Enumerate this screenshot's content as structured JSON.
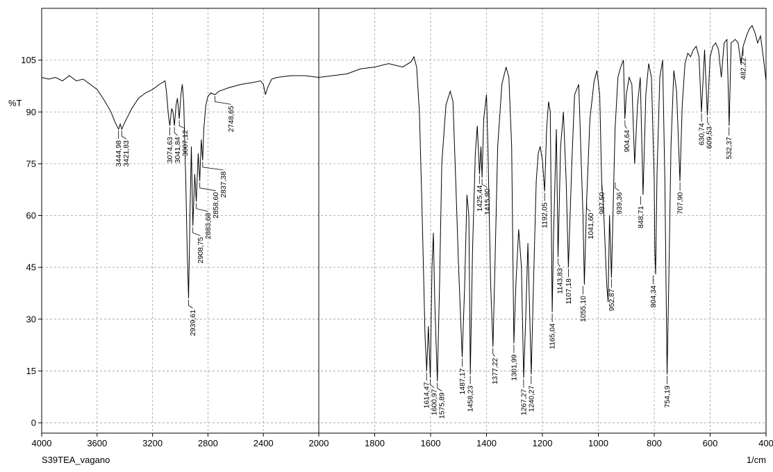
{
  "chart_data": {
    "type": "line",
    "title": "",
    "sample_name": "S39TEA_vagano",
    "xlabel": "1/cm",
    "ylabel": "%T",
    "xlim": [
      4000,
      400
    ],
    "ylim": [
      -3,
      120
    ],
    "x_ticks": [
      "4000",
      "3600",
      "3200",
      "2800",
      "2400",
      "2000",
      "1800",
      "1600",
      "1400",
      "1200",
      "1000",
      "800",
      "600",
      "400"
    ],
    "y_ticks": [
      "0",
      "15",
      "30",
      "45",
      "60",
      "75",
      "90",
      "105"
    ],
    "grid": true,
    "axis_break_x": 2000,
    "series": [
      {
        "points": [
          [
            4000,
            100
          ],
          [
            3950,
            99.5
          ],
          [
            3900,
            100
          ],
          [
            3850,
            99
          ],
          [
            3800,
            100.5
          ],
          [
            3750,
            99
          ],
          [
            3700,
            99.5
          ],
          [
            3650,
            98
          ],
          [
            3600,
            96.5
          ],
          [
            3550,
            93.5
          ],
          [
            3500,
            90
          ],
          [
            3470,
            87
          ],
          [
            3445,
            85
          ],
          [
            3433,
            86.5
          ],
          [
            3422,
            85
          ],
          [
            3400,
            87
          ],
          [
            3350,
            91
          ],
          [
            3300,
            94
          ],
          [
            3250,
            95.5
          ],
          [
            3200,
            96.5
          ],
          [
            3150,
            98
          ],
          [
            3110,
            99
          ],
          [
            3100,
            96
          ],
          [
            3085,
            89
          ],
          [
            3075,
            86
          ],
          [
            3062,
            91
          ],
          [
            3052,
            90
          ],
          [
            3042,
            86
          ],
          [
            3030,
            92
          ],
          [
            3020,
            94
          ],
          [
            3007,
            88
          ],
          [
            2995,
            95
          ],
          [
            2985,
            98
          ],
          [
            2975,
            93
          ],
          [
            2960,
            70
          ],
          [
            2950,
            50
          ],
          [
            2940,
            36
          ],
          [
            2930,
            60
          ],
          [
            2920,
            80
          ],
          [
            2909,
            57
          ],
          [
            2895,
            72
          ],
          [
            2884,
            64
          ],
          [
            2870,
            78
          ],
          [
            2859,
            70
          ],
          [
            2848,
            82
          ],
          [
            2838,
            76
          ],
          [
            2830,
            85
          ],
          [
            2815,
            92
          ],
          [
            2800,
            94.5
          ],
          [
            2780,
            95.5
          ],
          [
            2749,
            95
          ],
          [
            2720,
            96
          ],
          [
            2650,
            97
          ],
          [
            2560,
            98
          ],
          [
            2480,
            98.5
          ],
          [
            2420,
            99
          ],
          [
            2400,
            98
          ],
          [
            2385,
            95
          ],
          [
            2370,
            97
          ],
          [
            2340,
            99.5
          ],
          [
            2300,
            100
          ],
          [
            2200,
            100.5
          ],
          [
            2100,
            100.5
          ],
          [
            2000,
            100
          ],
          [
            1950,
            100.5
          ],
          [
            1900,
            101
          ],
          [
            1850,
            102.5
          ],
          [
            1800,
            103
          ],
          [
            1750,
            104
          ],
          [
            1700,
            103
          ],
          [
            1670,
            104.5
          ],
          [
            1660,
            106
          ],
          [
            1650,
            103
          ],
          [
            1640,
            90
          ],
          [
            1630,
            60
          ],
          [
            1620,
            25
          ],
          [
            1614,
            15
          ],
          [
            1608,
            28
          ],
          [
            1601,
            13
          ],
          [
            1595,
            45
          ],
          [
            1590,
            55
          ],
          [
            1585,
            35
          ],
          [
            1576,
            12
          ],
          [
            1568,
            40
          ],
          [
            1560,
            75
          ],
          [
            1545,
            92
          ],
          [
            1530,
            96
          ],
          [
            1520,
            93
          ],
          [
            1510,
            70
          ],
          [
            1500,
            45
          ],
          [
            1487,
            19
          ],
          [
            1478,
            40
          ],
          [
            1470,
            66
          ],
          [
            1463,
            60
          ],
          [
            1458,
            14
          ],
          [
            1450,
            50
          ],
          [
            1440,
            78
          ],
          [
            1433,
            86
          ],
          [
            1425,
            72
          ],
          [
            1420,
            80
          ],
          [
            1416,
            71
          ],
          [
            1410,
            88
          ],
          [
            1400,
            95
          ],
          [
            1395,
            80
          ],
          [
            1385,
            40
          ],
          [
            1377,
            22
          ],
          [
            1370,
            45
          ],
          [
            1360,
            80
          ],
          [
            1345,
            98
          ],
          [
            1330,
            103
          ],
          [
            1320,
            100
          ],
          [
            1310,
            80
          ],
          [
            1302,
            23
          ],
          [
            1295,
            40
          ],
          [
            1285,
            56
          ],
          [
            1275,
            45
          ],
          [
            1267,
            13
          ],
          [
            1260,
            30
          ],
          [
            1252,
            52
          ],
          [
            1240,
            14
          ],
          [
            1232,
            40
          ],
          [
            1222,
            70
          ],
          [
            1215,
            78
          ],
          [
            1208,
            80
          ],
          [
            1200,
            76
          ],
          [
            1192,
            67
          ],
          [
            1185,
            85
          ],
          [
            1178,
            93
          ],
          [
            1172,
            90
          ],
          [
            1165,
            32
          ],
          [
            1160,
            55
          ],
          [
            1150,
            85
          ],
          [
            1144,
            48
          ],
          [
            1135,
            80
          ],
          [
            1125,
            90
          ],
          [
            1115,
            70
          ],
          [
            1107,
            45
          ],
          [
            1095,
            75
          ],
          [
            1085,
            95
          ],
          [
            1070,
            98
          ],
          [
            1055,
            60
          ],
          [
            1050,
            40
          ],
          [
            1042,
            64
          ],
          [
            1030,
            88
          ],
          [
            1015,
            99
          ],
          [
            1005,
            102
          ],
          [
            995,
            95
          ],
          [
            988,
            70
          ],
          [
            980,
            60
          ],
          [
            970,
            40
          ],
          [
            965,
            35
          ],
          [
            960,
            60
          ],
          [
            953,
            42
          ],
          [
            940,
            85
          ],
          [
            930,
            100
          ],
          [
            920,
            103
          ],
          [
            910,
            105
          ],
          [
            905,
            88
          ],
          [
            900,
            95
          ],
          [
            890,
            100
          ],
          [
            880,
            98
          ],
          [
            870,
            75
          ],
          [
            860,
            92
          ],
          [
            850,
            100
          ],
          [
            840,
            66
          ],
          [
            830,
            95
          ],
          [
            820,
            104
          ],
          [
            810,
            100
          ],
          [
            800,
            70
          ],
          [
            798,
            50
          ],
          [
            795,
            43
          ],
          [
            790,
            72
          ],
          [
            780,
            100
          ],
          [
            770,
            105
          ],
          [
            762,
            70
          ],
          [
            754,
            14
          ],
          [
            748,
            40
          ],
          [
            740,
            80
          ],
          [
            730,
            102
          ],
          [
            720,
            96
          ],
          [
            708,
            70
          ],
          [
            700,
            92
          ],
          [
            690,
            104
          ],
          [
            680,
            107
          ],
          [
            670,
            106
          ],
          [
            660,
            108
          ],
          [
            650,
            109
          ],
          [
            640,
            106
          ],
          [
            631,
            90
          ],
          [
            620,
            108
          ],
          [
            610,
            89
          ],
          [
            600,
            106
          ],
          [
            590,
            109
          ],
          [
            580,
            110
          ],
          [
            570,
            108
          ],
          [
            560,
            100
          ],
          [
            550,
            110
          ],
          [
            540,
            111
          ],
          [
            532,
            86
          ],
          [
            525,
            110
          ],
          [
            510,
            111
          ],
          [
            500,
            110
          ],
          [
            490,
            104
          ],
          [
            482,
            109
          ],
          [
            470,
            112
          ],
          [
            460,
            114
          ],
          [
            450,
            115
          ],
          [
            440,
            113
          ],
          [
            430,
            110
          ],
          [
            420,
            112
          ],
          [
            410,
            106
          ],
          [
            400,
            99
          ]
        ]
      }
    ],
    "peak_labels": [
      {
        "text": "3444,98",
        "x": 3444.98,
        "y": 85
      },
      {
        "text": "3421,83",
        "x": 3421.83,
        "y": 85
      },
      {
        "text": "3074,63",
        "x": 3074.63,
        "y": 86
      },
      {
        "text": "3041,84",
        "x": 3041.84,
        "y": 86
      },
      {
        "text": "3007,12",
        "x": 3007.12,
        "y": 88
      },
      {
        "text": "2939,61",
        "x": 2939.61,
        "y": 36
      },
      {
        "text": "2908,75",
        "x": 2908.75,
        "y": 57
      },
      {
        "text": "2883,68",
        "x": 2883.68,
        "y": 64
      },
      {
        "text": "2858,60",
        "x": 2858.6,
        "y": 70
      },
      {
        "text": "2837,38",
        "x": 2837.38,
        "y": 76
      },
      {
        "text": "2748,65",
        "x": 2748.65,
        "y": 95
      },
      {
        "text": "1614,47",
        "x": 1614.47,
        "y": 15
      },
      {
        "text": "1600,97",
        "x": 1600.97,
        "y": 13
      },
      {
        "text": "1575,89",
        "x": 1575.89,
        "y": 12
      },
      {
        "text": "1487,17",
        "x": 1487.17,
        "y": 19
      },
      {
        "text": "1458,23",
        "x": 1458.23,
        "y": 14
      },
      {
        "text": "1425,44",
        "x": 1425.44,
        "y": 72
      },
      {
        "text": "1415,80",
        "x": 1415.8,
        "y": 71
      },
      {
        "text": "1377,22",
        "x": 1377.22,
        "y": 22
      },
      {
        "text": "1301,99",
        "x": 1301.99,
        "y": 23
      },
      {
        "text": "1267,27",
        "x": 1267.27,
        "y": 13
      },
      {
        "text": "1240,27",
        "x": 1240.27,
        "y": 14
      },
      {
        "text": "1192,05",
        "x": 1192.05,
        "y": 67
      },
      {
        "text": "1165,04",
        "x": 1165.04,
        "y": 32
      },
      {
        "text": "1143,83",
        "x": 1143.83,
        "y": 48
      },
      {
        "text": "1107,18",
        "x": 1107.18,
        "y": 45
      },
      {
        "text": "1055,10",
        "x": 1055.1,
        "y": 40
      },
      {
        "text": "1041,60",
        "x": 1041.6,
        "y": 64
      },
      {
        "text": "987,50",
        "x": 987.5,
        "y": 70
      },
      {
        "text": "952,87",
        "x": 952.87,
        "y": 42
      },
      {
        "text": "939,36",
        "x": 939.36,
        "y": 70
      },
      {
        "text": "904,64",
        "x": 904.64,
        "y": 88
      },
      {
        "text": "848,71",
        "x": 848.71,
        "y": 66
      },
      {
        "text": "804,34",
        "x": 804.34,
        "y": 43
      },
      {
        "text": "754,19",
        "x": 754.19,
        "y": 14
      },
      {
        "text": "707,90",
        "x": 707.9,
        "y": 70
      },
      {
        "text": "630,74",
        "x": 630.74,
        "y": 90
      },
      {
        "text": "609,53",
        "x": 609.53,
        "y": 89
      },
      {
        "text": "532,37",
        "x": 532.37,
        "y": 86
      },
      {
        "text": "482,22",
        "x": 482.22,
        "y": 109
      }
    ]
  }
}
